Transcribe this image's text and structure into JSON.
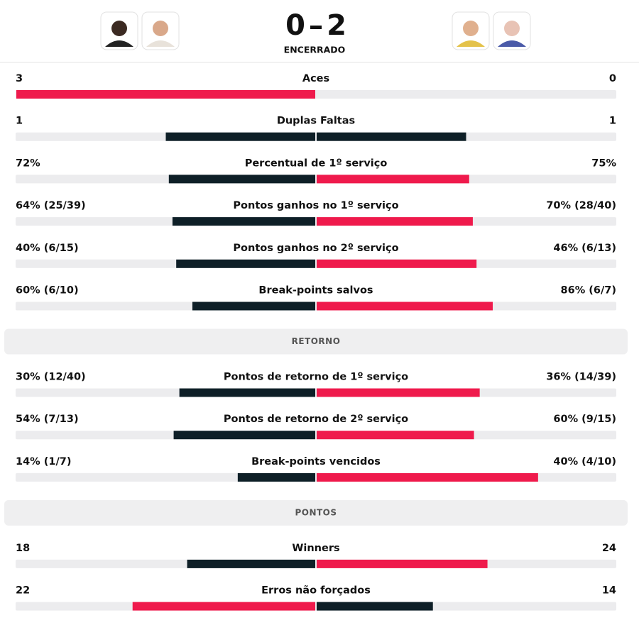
{
  "header": {
    "score": [
      0,
      2
    ],
    "status": "ENCERRADO"
  },
  "colors": {
    "leader": "#ef1a4c",
    "other": "#0e1f27",
    "track": "#ececee"
  },
  "groups": [
    {
      "rows": [
        {
          "label": "Aces",
          "left": 3,
          "right": 0
        },
        {
          "label": "Duplas Faltas",
          "left": 1,
          "right": 1
        },
        {
          "label": "Percentual de 1º serviço",
          "left": {
            "value": 72,
            "label": "72%"
          },
          "right": {
            "value": 75,
            "label": "75%"
          }
        },
        {
          "label": "Pontos ganhos no 1º serviço",
          "left": {
            "value": 64,
            "label": "64% (25/39)"
          },
          "right": {
            "value": 70,
            "label": "70% (28/40)"
          }
        },
        {
          "label": "Pontos ganhos no 2º serviço",
          "left": {
            "value": 40,
            "label": "40% (6/15)"
          },
          "right": {
            "value": 46,
            "label": "46% (6/13)"
          }
        },
        {
          "label": "Break-points salvos",
          "left": {
            "value": 60,
            "label": "60% (6/10)"
          },
          "right": {
            "value": 86,
            "label": "86% (6/7)"
          }
        }
      ]
    },
    {
      "title": "RETORNO",
      "rows": [
        {
          "label": "Pontos de retorno de 1º serviço",
          "left": {
            "value": 30,
            "label": "30% (12/40)"
          },
          "right": {
            "value": 36,
            "label": "36% (14/39)"
          }
        },
        {
          "label": "Pontos de retorno de 2º serviço",
          "left": {
            "value": 54,
            "label": "54% (7/13)"
          },
          "right": {
            "value": 60,
            "label": "60% (9/15)"
          }
        },
        {
          "label": "Break-points vencidos",
          "left": {
            "value": 14,
            "label": "14% (1/7)"
          },
          "right": {
            "value": 40,
            "label": "40% (4/10)"
          }
        }
      ]
    },
    {
      "title": "PONTOS",
      "rows": [
        {
          "label": "Winners",
          "left": 18,
          "right": 24
        },
        {
          "label": "Erros não forçados",
          "left": 22,
          "right": 14
        }
      ]
    }
  ]
}
